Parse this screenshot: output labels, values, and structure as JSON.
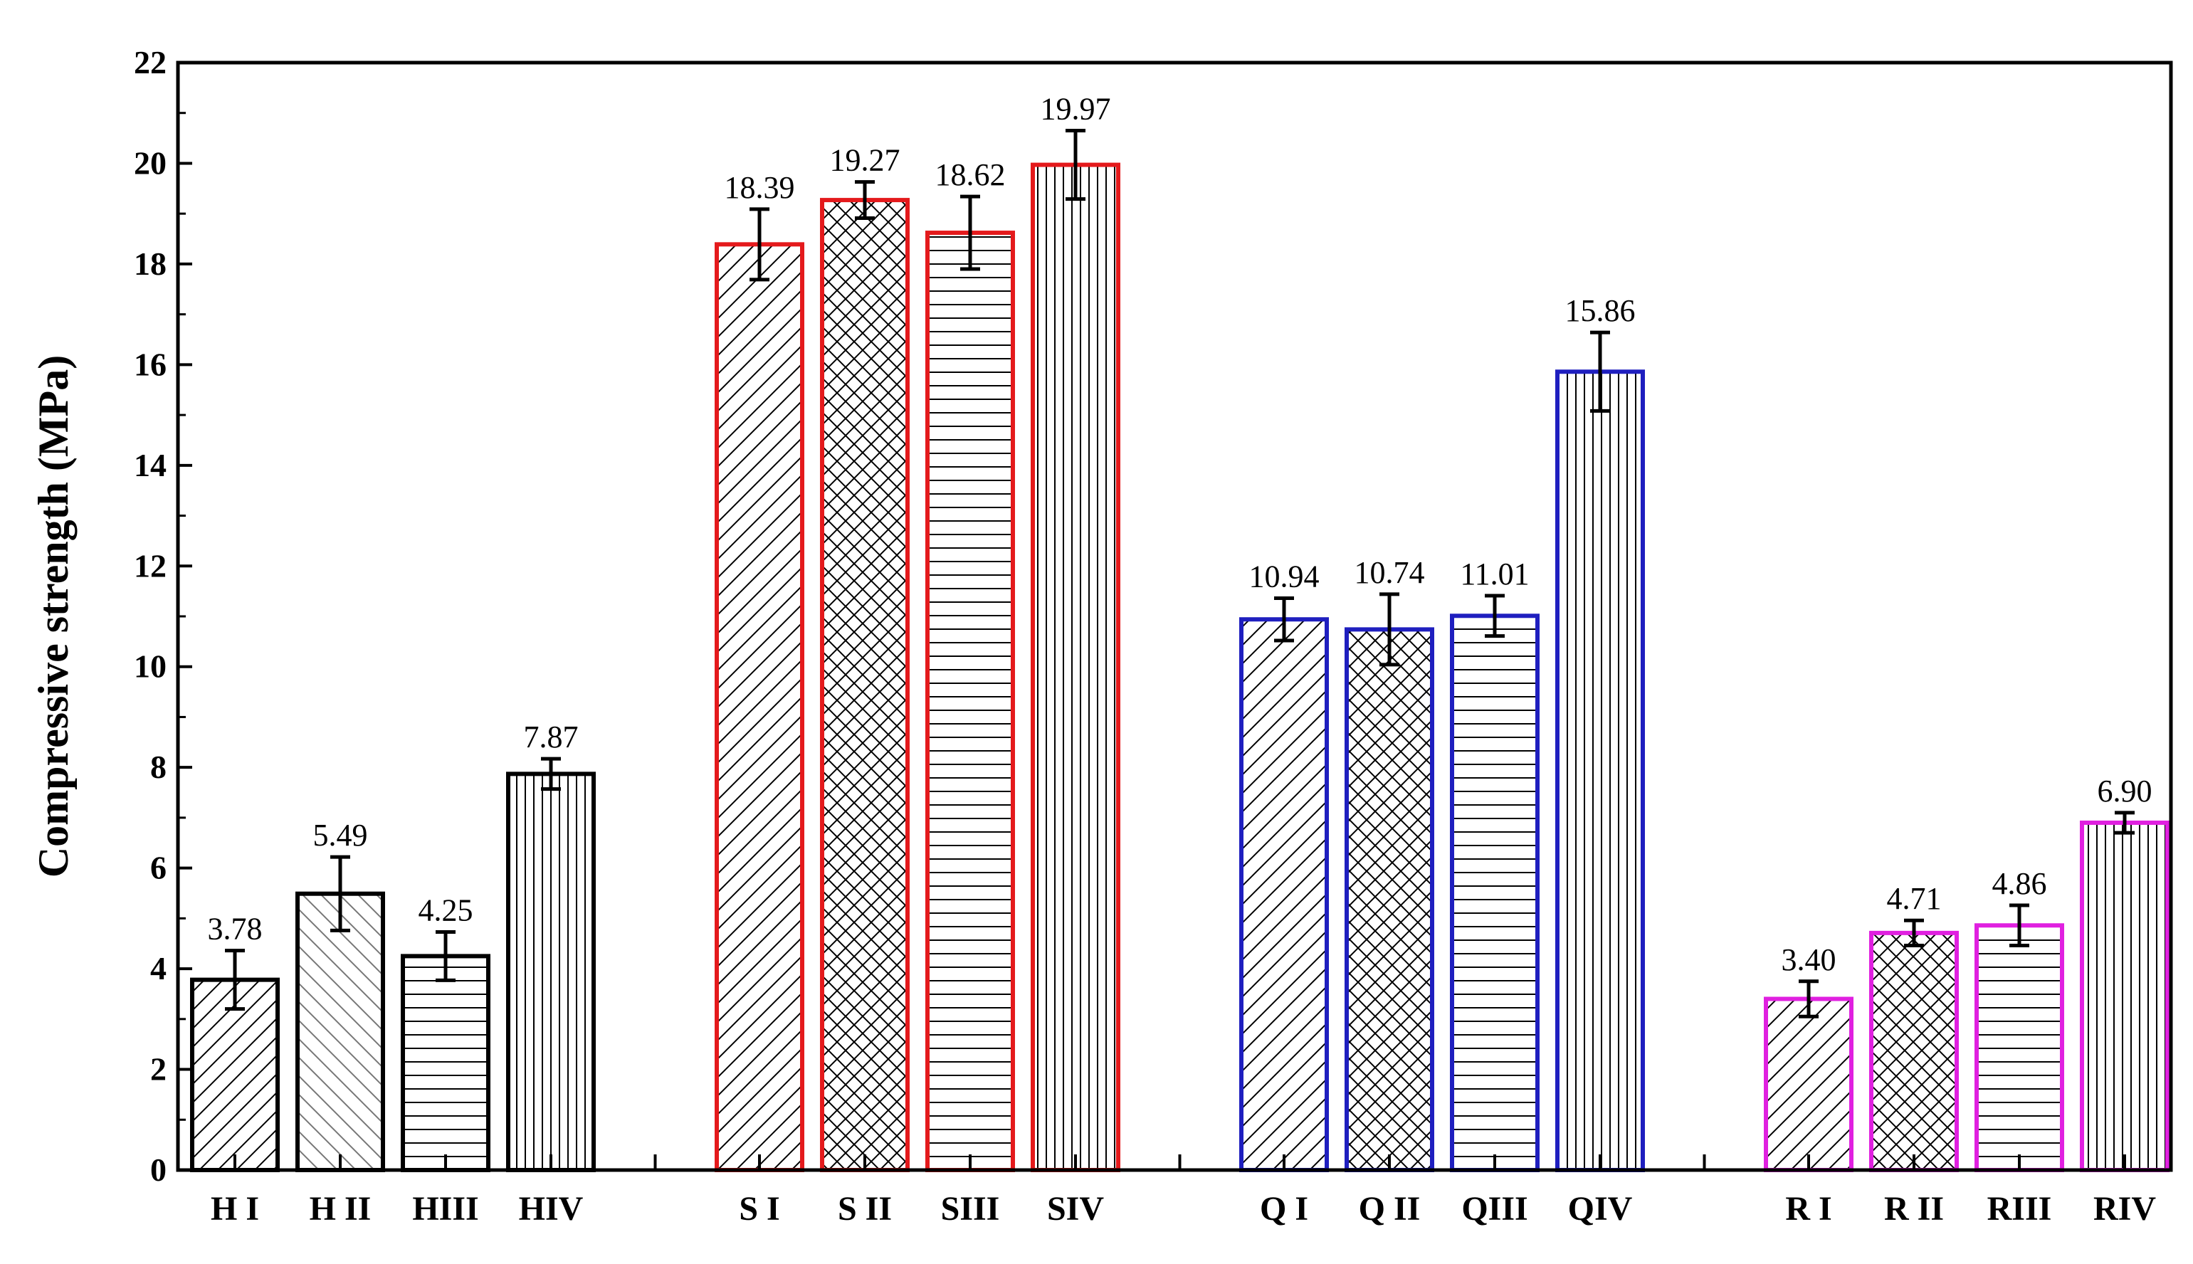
{
  "chart_data": {
    "type": "bar",
    "title": "",
    "xlabel": "",
    "ylabel": "Compressive strength (MPa)",
    "ylim": [
      0,
      22
    ],
    "yticks": [
      0,
      2,
      4,
      6,
      8,
      10,
      12,
      14,
      16,
      18,
      20,
      22
    ],
    "grid": false,
    "legend": "none",
    "groups": [
      {
        "color": "#000000",
        "bars": [
          {
            "label": "H I",
            "value": 3.78,
            "value_label": "3.78",
            "error": 0.58,
            "pattern": "diag"
          },
          {
            "label": "H II",
            "value": 5.49,
            "value_label": "5.49",
            "error": 0.73,
            "pattern": "backdiag"
          },
          {
            "label": "HIII",
            "value": 4.25,
            "value_label": "4.25",
            "error": 0.48,
            "pattern": "horiz"
          },
          {
            "label": "HIV",
            "value": 7.87,
            "value_label": "7.87",
            "error": 0.3,
            "pattern": "vert"
          }
        ]
      },
      {
        "color": "#e41a1c",
        "bars": [
          {
            "label": "S I",
            "value": 18.39,
            "value_label": "18.39",
            "error": 0.7,
            "pattern": "diag"
          },
          {
            "label": "S II",
            "value": 19.27,
            "value_label": "19.27",
            "error": 0.36,
            "pattern": "cross"
          },
          {
            "label": "SIII",
            "value": 18.62,
            "value_label": "18.62",
            "error": 0.72,
            "pattern": "horiz"
          },
          {
            "label": "SIV",
            "value": 19.97,
            "value_label": "19.97",
            "error": 0.68,
            "pattern": "vert"
          }
        ]
      },
      {
        "color": "#1f1fbf",
        "bars": [
          {
            "label": "Q I",
            "value": 10.94,
            "value_label": "10.94",
            "error": 0.42,
            "pattern": "diag"
          },
          {
            "label": "Q II",
            "value": 10.74,
            "value_label": "10.74",
            "error": 0.7,
            "pattern": "cross"
          },
          {
            "label": "QIII",
            "value": 11.01,
            "value_label": "11.01",
            "error": 0.4,
            "pattern": "horiz"
          },
          {
            "label": "QIV",
            "value": 15.86,
            "value_label": "15.86",
            "error": 0.78,
            "pattern": "vert"
          }
        ]
      },
      {
        "color": "#e020e0",
        "bars": [
          {
            "label": "R I",
            "value": 3.4,
            "value_label": "3.40",
            "error": 0.35,
            "pattern": "diag"
          },
          {
            "label": "R II",
            "value": 4.71,
            "value_label": "4.71",
            "error": 0.25,
            "pattern": "cross"
          },
          {
            "label": "RIII",
            "value": 4.86,
            "value_label": "4.86",
            "error": 0.4,
            "pattern": "horiz"
          },
          {
            "label": "RIV",
            "value": 6.9,
            "value_label": "6.90",
            "error": 0.2,
            "pattern": "vert"
          }
        ]
      }
    ]
  }
}
